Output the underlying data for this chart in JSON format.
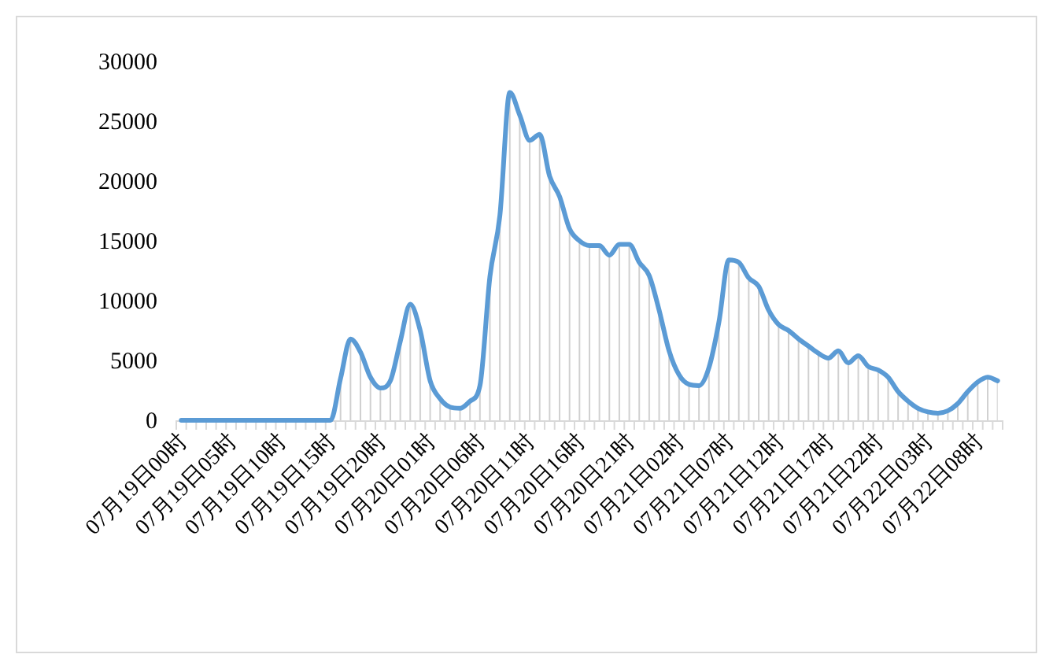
{
  "chart_data": {
    "type": "area",
    "categories": [
      "07月19日00时",
      null,
      null,
      null,
      null,
      "07月19日05时",
      null,
      null,
      null,
      null,
      "07月19日10时",
      null,
      null,
      null,
      null,
      "07月19日15时",
      null,
      null,
      null,
      null,
      "07月19日20时",
      null,
      null,
      null,
      null,
      "07月20日01时",
      null,
      null,
      null,
      null,
      "07月20日06时",
      null,
      null,
      null,
      null,
      "07月20日11时",
      null,
      null,
      null,
      null,
      "07月20日16时",
      null,
      null,
      null,
      null,
      "07月20日21时",
      null,
      null,
      null,
      null,
      "07月21日02时",
      null,
      null,
      null,
      null,
      "07月21日07时",
      null,
      null,
      null,
      null,
      "07月21日12时",
      null,
      null,
      null,
      null,
      "07月21日17时",
      null,
      null,
      null,
      null,
      "07月21日22时",
      null,
      null,
      null,
      null,
      "07月22日03时",
      null,
      null,
      null,
      null,
      "07月22日08时",
      null,
      null
    ],
    "series": [
      {
        "color": "#5b9bd5",
        "values": [
          0,
          0,
          0,
          0,
          0,
          0,
          0,
          0,
          0,
          0,
          0,
          0,
          0,
          0,
          0,
          0,
          3500,
          6800,
          5700,
          3600,
          2700,
          3300,
          6600,
          9700,
          7500,
          3300,
          1800,
          1100,
          1000,
          1600,
          2900,
          12000,
          17100,
          27400,
          25500,
          23400,
          23900,
          20400,
          18700,
          16000,
          15000,
          14600,
          14600,
          13800,
          14700,
          14700,
          13200,
          12100,
          9200,
          5800,
          3800,
          3000,
          2900,
          4400,
          8200,
          13400,
          13200,
          11900,
          11200,
          9200,
          8000,
          7500,
          6800,
          6200,
          5600,
          5200,
          5800,
          4800,
          5400,
          4500,
          4200,
          3600,
          2400,
          1600,
          1000,
          700,
          600,
          800,
          1400,
          2400,
          3200,
          3600,
          3300
        ]
      }
    ],
    "ylim": [
      0,
      30000
    ],
    "yticks": [
      0,
      5000,
      10000,
      15000,
      20000,
      25000,
      30000
    ],
    "grid": false,
    "marker": "none",
    "line_style": "solid"
  }
}
